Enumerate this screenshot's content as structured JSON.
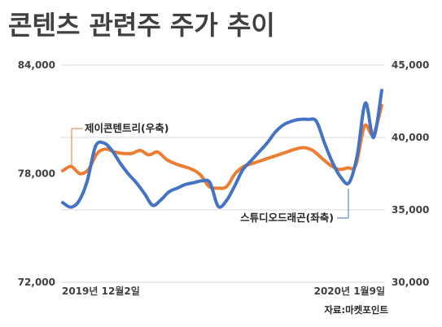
{
  "chart_data": {
    "type": "line",
    "title": "콘텐츠 관련주 주가 추이",
    "source": "자료:마켓포인트",
    "x_start_label": "2019년 12월2일",
    "x_end_label": "2020년 1월9일",
    "left_axis": {
      "ylim": [
        72000,
        84000
      ],
      "ticks": [
        "72,000",
        "78,000",
        "84,000"
      ]
    },
    "right_axis": {
      "ylim": [
        30000,
        45000
      ],
      "ticks": [
        "30,000",
        "35,000",
        "40,000",
        "45,000"
      ]
    },
    "grid": true,
    "series": [
      {
        "name": "스튜디오드래곤(좌축)",
        "axis": "left",
        "color": "#4472C4",
        "values": [
          76400,
          76150,
          76500,
          77600,
          79500,
          79700,
          79300,
          78600,
          78000,
          77500,
          76900,
          76250,
          76550,
          77000,
          77200,
          77400,
          77500,
          77600,
          77500,
          76200,
          76500,
          77300,
          78200,
          78700,
          79200,
          79700,
          80300,
          80700,
          80900,
          81000,
          81000,
          80900,
          79700,
          78600,
          77800,
          77500,
          79000,
          81900,
          80000,
          82600
        ]
      },
      {
        "name": "제이콘텐트리(우축)",
        "axis": "right",
        "color": "#ED7D31",
        "values": [
          37700,
          38000,
          37500,
          37800,
          38900,
          39200,
          39000,
          38900,
          38900,
          39100,
          38800,
          39000,
          38500,
          38200,
          38000,
          37800,
          37400,
          36600,
          36500,
          36600,
          37500,
          38000,
          38200,
          38400,
          38600,
          38800,
          39000,
          39200,
          39300,
          39100,
          38600,
          38100,
          37800,
          37900,
          38100,
          40800,
          40200,
          42200
        ]
      }
    ]
  }
}
